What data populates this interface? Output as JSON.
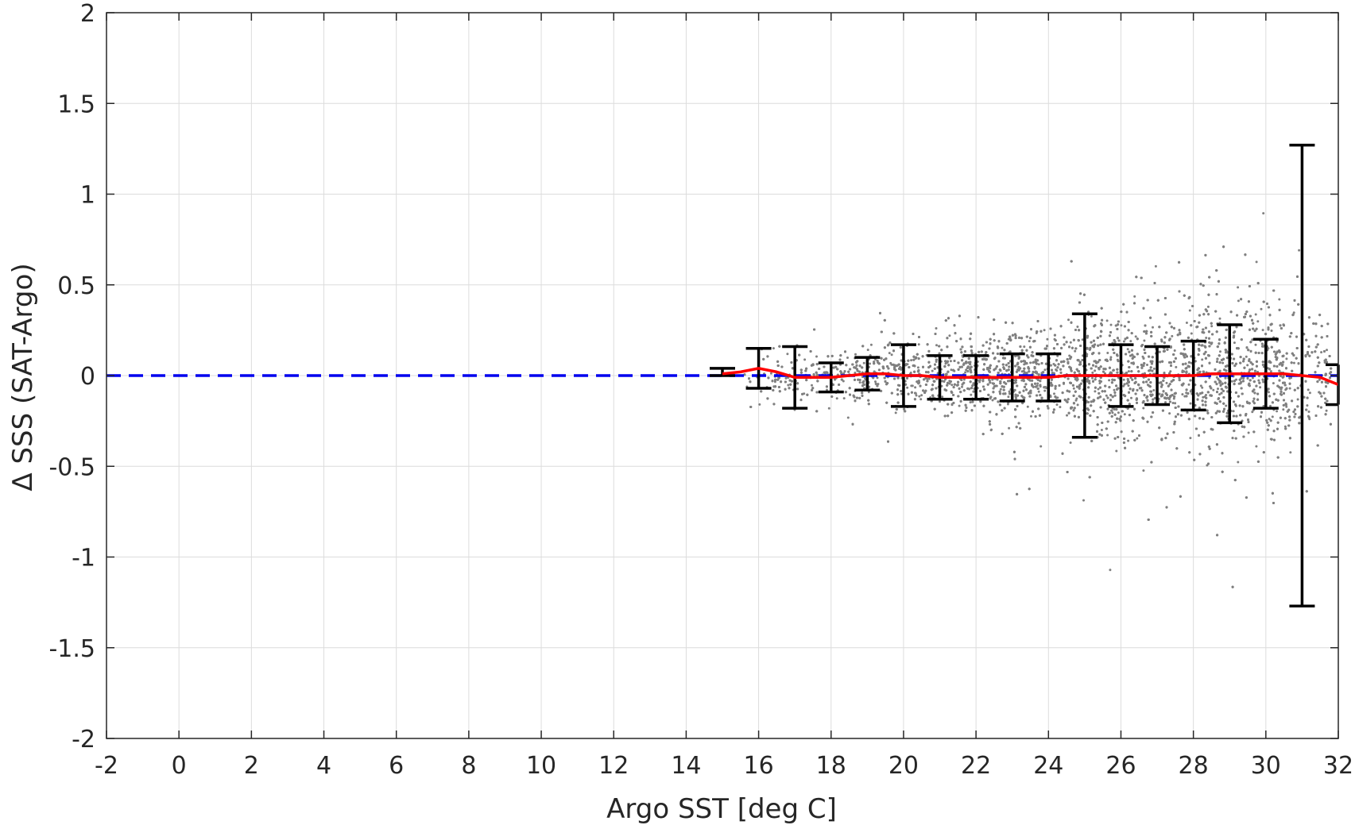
{
  "chart_data": {
    "type": "scatter",
    "title": "",
    "xlabel": "Argo SST [deg C]",
    "ylabel": "Δ SSS (SAT-Argo)",
    "xlim": [
      -2,
      32
    ],
    "ylim": [
      -2,
      2
    ],
    "grid": true,
    "legend": "none",
    "x_ticks": [
      "-2",
      "0",
      "2",
      "4",
      "6",
      "8",
      "10",
      "12",
      "14",
      "16",
      "18",
      "20",
      "22",
      "24",
      "26",
      "28",
      "30",
      "32"
    ],
    "y_ticks": [
      "-2",
      "-1.5",
      "-1",
      "-0.5",
      "0",
      "0.5",
      "1",
      "1.5",
      "2"
    ],
    "colors": {
      "scatter": "#808080",
      "mean_line": "#ff0000",
      "zero_line": "#0000ee",
      "error_bars": "#000000",
      "axis": "#262626",
      "grid": "#dcdcdc"
    },
    "scatter_density": {
      "x_range": [
        15.5,
        31.8
      ],
      "center_std_by_sst": [
        [
          16,
          0.08
        ],
        [
          18,
          0.07
        ],
        [
          20,
          0.1
        ],
        [
          22,
          0.11
        ],
        [
          24,
          0.13
        ],
        [
          26,
          0.17
        ],
        [
          28,
          0.2
        ],
        [
          30,
          0.2
        ],
        [
          31.5,
          0.15
        ]
      ]
    },
    "zero_line": {
      "y": 0,
      "style": "dashed"
    },
    "error_bars": [
      {
        "x": 15,
        "mean": 0.02,
        "std": 0.02
      },
      {
        "x": 16,
        "mean": 0.04,
        "std": 0.11
      },
      {
        "x": 17,
        "mean": -0.01,
        "std": 0.17
      },
      {
        "x": 18,
        "mean": -0.01,
        "std": 0.08
      },
      {
        "x": 19,
        "mean": 0.01,
        "std": 0.09
      },
      {
        "x": 20,
        "mean": 0.0,
        "std": 0.17
      },
      {
        "x": 21,
        "mean": -0.01,
        "std": 0.12
      },
      {
        "x": 22,
        "mean": -0.01,
        "std": 0.12
      },
      {
        "x": 23,
        "mean": -0.01,
        "std": 0.13
      },
      {
        "x": 24,
        "mean": -0.01,
        "std": 0.13
      },
      {
        "x": 25,
        "mean": 0.0,
        "std": 0.34
      },
      {
        "x": 26,
        "mean": 0.0,
        "std": 0.17
      },
      {
        "x": 27,
        "mean": 0.0,
        "std": 0.16
      },
      {
        "x": 28,
        "mean": 0.0,
        "std": 0.19
      },
      {
        "x": 29,
        "mean": 0.01,
        "std": 0.27
      },
      {
        "x": 30,
        "mean": 0.01,
        "std": 0.19
      },
      {
        "x": 31,
        "mean": 0.0,
        "std": 1.27
      },
      {
        "x": 32,
        "mean": -0.05,
        "std": 0.11
      }
    ],
    "mean_line": {
      "x": [
        15,
        15.5,
        16,
        16.5,
        17,
        17.5,
        18,
        18.5,
        19,
        19.5,
        20,
        20.5,
        21,
        21.5,
        22,
        22.5,
        23,
        23.5,
        24,
        24.5,
        25,
        25.5,
        26,
        26.5,
        27,
        27.5,
        28,
        28.5,
        29,
        29.5,
        30,
        30.5,
        31,
        31.5,
        32
      ],
      "y": [
        0.01,
        0.02,
        0.04,
        0.02,
        -0.01,
        -0.01,
        -0.01,
        0.0,
        0.01,
        0.01,
        0.0,
        0.0,
        -0.01,
        -0.01,
        -0.01,
        -0.01,
        -0.01,
        -0.01,
        -0.01,
        0.0,
        0.0,
        0.0,
        0.0,
        0.0,
        0.0,
        0.0,
        0.0,
        0.01,
        0.01,
        0.01,
        0.01,
        0.01,
        0.0,
        -0.01,
        -0.05
      ]
    }
  }
}
